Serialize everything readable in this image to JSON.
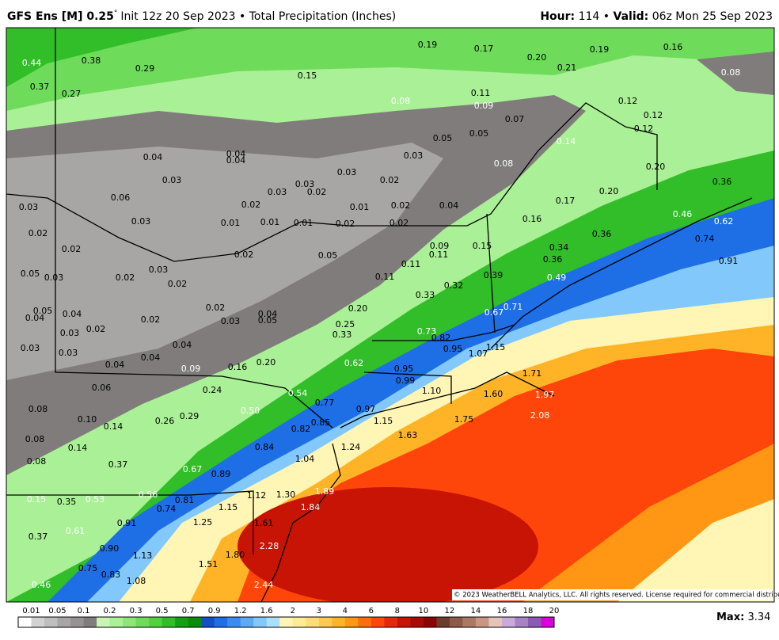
{
  "header": {
    "model": "GFS Ens [M] 0.25",
    "degree": "°",
    "description": "Init 12z 20 Sep 2023 • Total Precipitation (Inches)",
    "hour_label": "Hour:",
    "hour_value": "114 •",
    "valid_label": "Valid:",
    "valid_value": "06z Mon 25 Sep 2023"
  },
  "map": {
    "point_values": [
      "0.44",
      "0.38",
      "0.29",
      "0.37",
      "0.27",
      "0.15",
      "0.19",
      "0.17",
      "0.20",
      "0.21",
      "0.19",
      "0.16",
      "0.08",
      "0.08",
      "0.11",
      "0.09",
      "0.07",
      "0.12",
      "0.12",
      "0.12",
      "0.04",
      "0.04",
      "0.04",
      "0.03",
      "0.03",
      "0.03",
      "0.05",
      "0.05",
      "0.14",
      "0.08",
      "0.06",
      "0.03",
      "0.03",
      "0.02",
      "0.02",
      "0.02",
      "0.03",
      "0.03",
      "0.01",
      "0.01",
      "0.01",
      "0.02",
      "0.01",
      "0.02",
      "0.02",
      "0.04",
      "0.16",
      "0.17",
      "0.20",
      "0.20",
      "0.46",
      "0.36",
      "0.02",
      "0.02",
      "0.02",
      "0.05",
      "0.09",
      "0.11",
      "0.15",
      "0.36",
      "0.34",
      "0.36",
      "0.62",
      "0.74",
      "0.91",
      "0.05",
      "0.03",
      "0.02",
      "0.03",
      "0.02",
      "0.11",
      "0.11",
      "0.32",
      "0.39",
      "0.49",
      "0.33",
      "0.71",
      "0.67",
      "0.05",
      "0.04",
      "0.04",
      "0.02",
      "0.03",
      "0.02",
      "0.02",
      "0.03",
      "0.04",
      "0.05",
      "0.20",
      "0.25",
      "0.33",
      "0.73",
      "0.82",
      "0.95",
      "1.07",
      "1.15",
      "0.03",
      "0.03",
      "0.04",
      "0.04",
      "0.04",
      "0.09",
      "0.16",
      "0.20",
      "0.62",
      "0.95",
      "0.99",
      "1.10",
      "1.71",
      "1.97",
      "1.60",
      "2.08",
      "0.06",
      "0.24",
      "0.54",
      "0.77",
      "0.08",
      "0.10",
      "0.14",
      "0.26",
      "0.29",
      "0.50",
      "0.82",
      "0.85",
      "0.97",
      "1.15",
      "1.63",
      "1.75",
      "0.08",
      "0.14",
      "0.84",
      "1.04",
      "1.24",
      "0.08",
      "0.37",
      "0.67",
      "0.89",
      "0.15",
      "0.35",
      "0.53",
      "0.56",
      "0.81",
      "0.74",
      "1.15",
      "1.12",
      "1.30",
      "1.89",
      "1.84",
      "0.61",
      "0.91",
      "1.25",
      "1.61",
      "0.37",
      "0.90",
      "2.28",
      "1.13",
      "1.80",
      "0.75",
      "0.83",
      "1.51",
      "0.46",
      "1.08",
      "2.44"
    ],
    "copyright": "© 2023 WeatherBELL Analytics, LLC. All rights reserved. License required for commercial distribution."
  },
  "colorbar": {
    "labels": [
      "0.01",
      "0.05",
      "0.1",
      "0.2",
      "0.3",
      "0.5",
      "0.7",
      "0.9",
      "1.2",
      "1.6",
      "2",
      "3",
      "4",
      "6",
      "8",
      "10",
      "12",
      "14",
      "16",
      "18",
      "20"
    ],
    "colors": [
      "#ffffff",
      "#d2d2d2",
      "#bebebe",
      "#a8a5a5",
      "#969292",
      "#807c7c",
      "#c8f5b4",
      "#aaf096",
      "#8ce678",
      "#6edc5a",
      "#50d23c",
      "#32be28",
      "#14a014",
      "#0a8c0a",
      "#1450c8",
      "#1e6ee6",
      "#3c8cf0",
      "#5aaaf5",
      "#82c8fa",
      "#aae1fa",
      "#fff5b4",
      "#ffeb96",
      "#ffdc78",
      "#ffc850",
      "#ffb428",
      "#ff9614",
      "#ff6e0a",
      "#ff460a",
      "#e6280a",
      "#c81405",
      "#aa0a05",
      "#8c0505",
      "#6e3c2d",
      "#8c5a46",
      "#aa7864",
      "#c89682",
      "#e6c3b9",
      "#c8aadc",
      "#aa82c8",
      "#8c5ab4",
      "#dc00dc"
    ]
  },
  "footer": {
    "max_label": "Max:",
    "max_value": "3.34"
  }
}
